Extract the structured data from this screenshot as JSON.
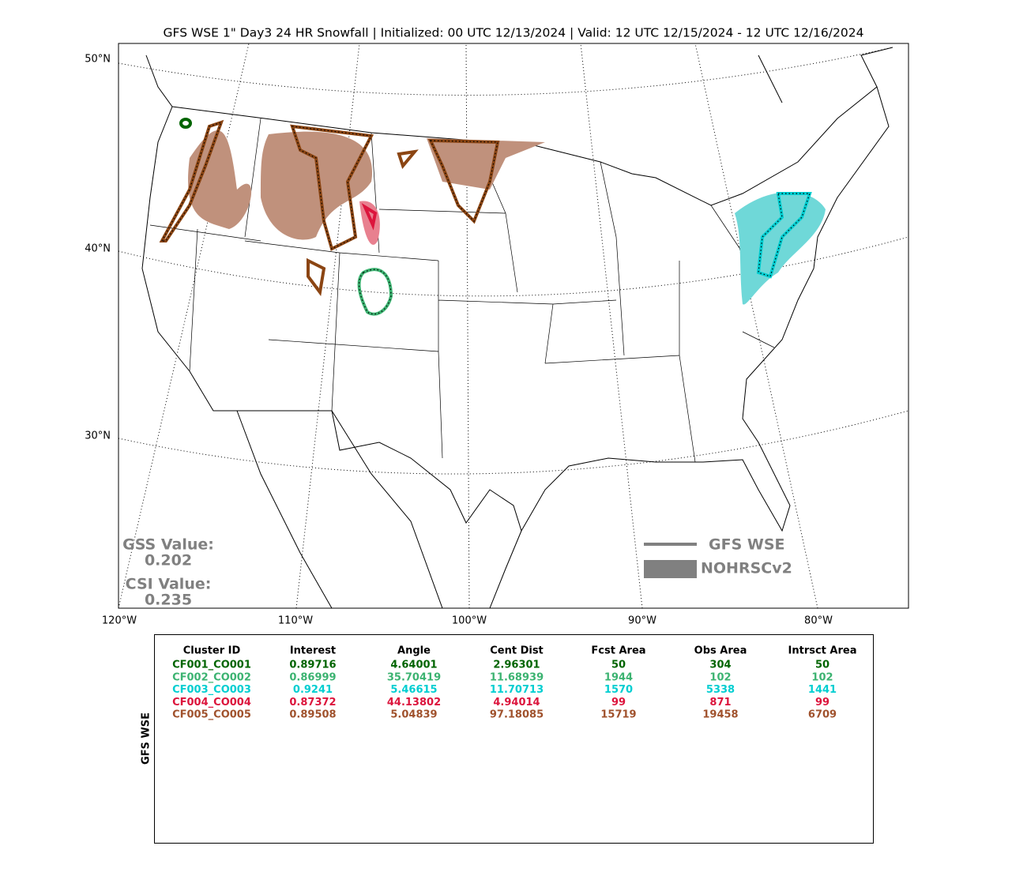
{
  "title": "GFS WSE 1\" Day3 24 HR Snowfall | Initialized: 00 UTC 12/13/2024 | Valid: 12 UTC 12/15/2024 - 12 UTC 12/16/2024",
  "map": {
    "lat_labels": [
      "50°N",
      "40°N",
      "30°N"
    ],
    "lon_labels": [
      "120°W",
      "110°W",
      "100°W",
      "90°W",
      "80°W"
    ],
    "scores": [
      {
        "label": "GSS Value:",
        "value": "0.202"
      },
      {
        "label": "CSI Value:",
        "value": "0.235"
      }
    ],
    "score_color": "#808080",
    "legend": {
      "color": "#808080",
      "entries": [
        "GFS WSE",
        "NOHRSCv2"
      ]
    }
  },
  "table": {
    "side_label": "GFS WSE",
    "headers": [
      "Cluster ID",
      "Interest",
      "Angle",
      "Cent Dist",
      "Fcst Area",
      "Obs Area",
      "Intrsct Area"
    ],
    "rows": [
      {
        "color": "#006400",
        "cells": [
          "CF001_CO001",
          "0.89716",
          "4.64001",
          "2.96301",
          "50",
          "304",
          "50"
        ]
      },
      {
        "color": "#3cb371",
        "cells": [
          "CF002_CO002",
          "0.86999",
          "35.70419",
          "11.68939",
          "1944",
          "102",
          "102"
        ]
      },
      {
        "color": "#00ced1",
        "cells": [
          "CF003_CO003",
          "0.9241",
          "5.46615",
          "11.70713",
          "1570",
          "5338",
          "1441"
        ]
      },
      {
        "color": "#dc143c",
        "cells": [
          "CF004_CO004",
          "0.87372",
          "44.13802",
          "4.94014",
          "99",
          "871",
          "99"
        ]
      },
      {
        "color": "#a0522d",
        "cells": [
          "CF005_CO005",
          "0.89508",
          "5.04839",
          "97.18085",
          "15719",
          "19458",
          "6709"
        ]
      }
    ]
  }
}
